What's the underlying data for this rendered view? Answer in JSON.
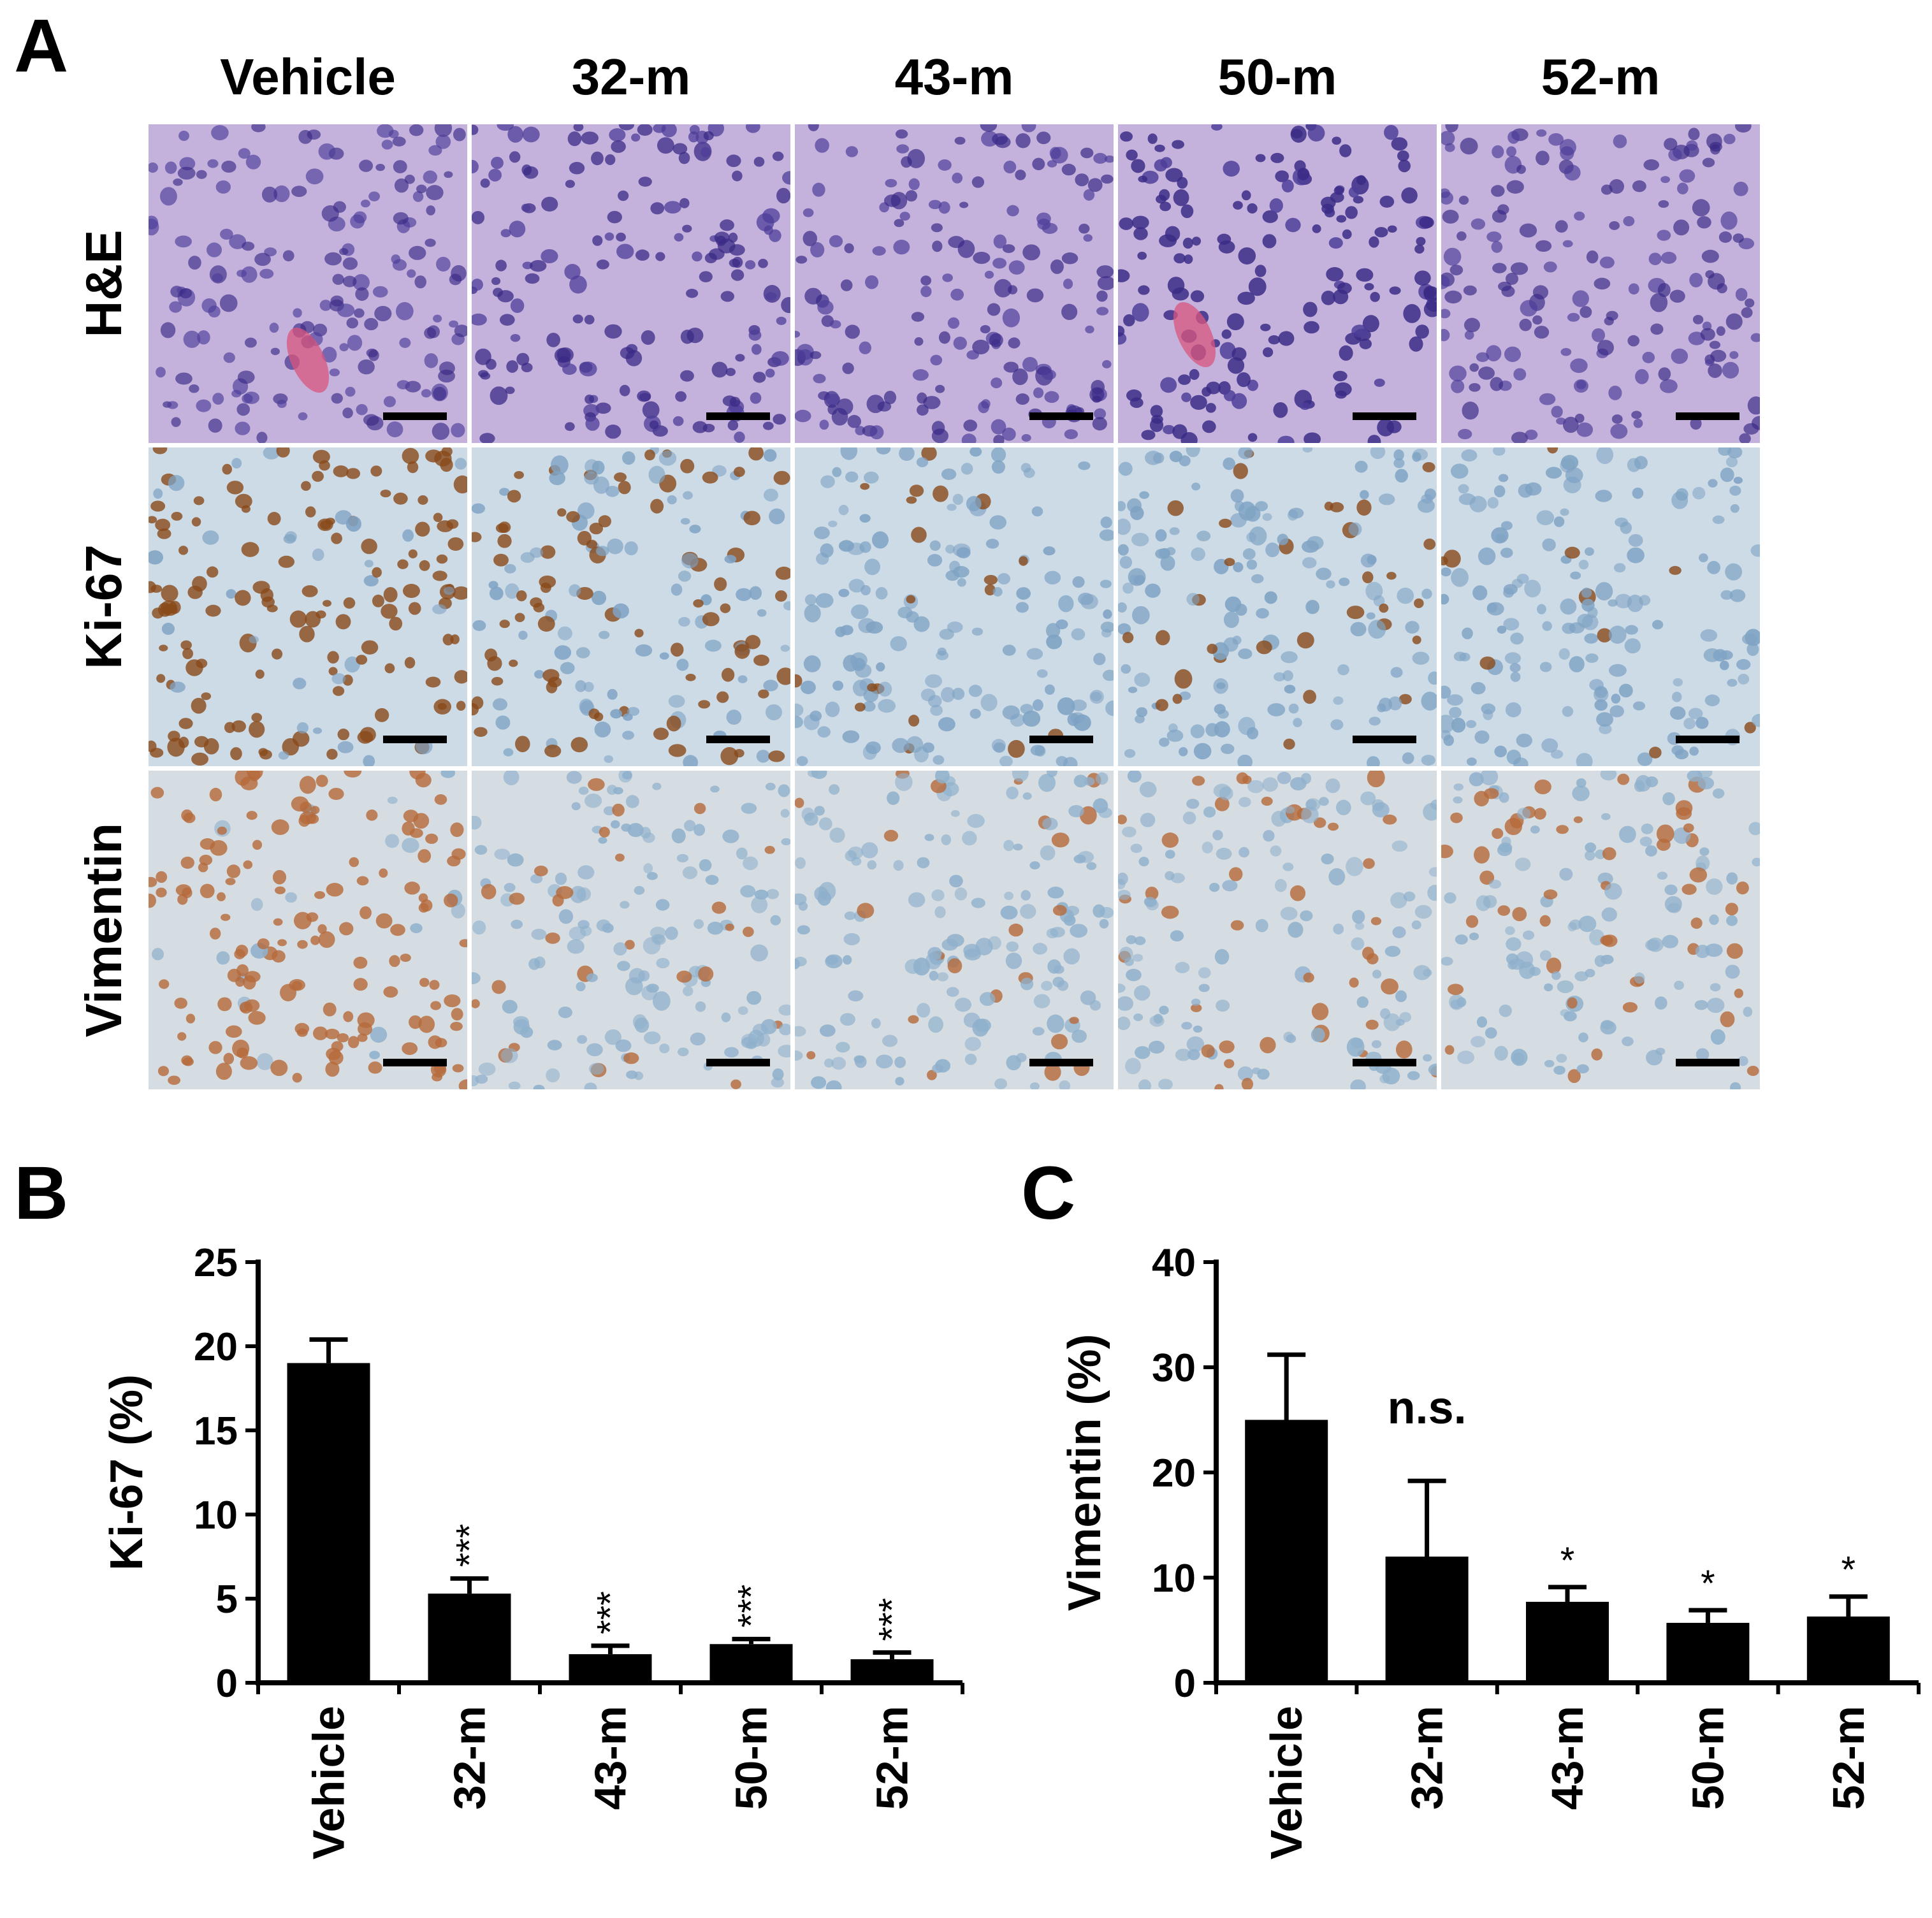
{
  "panel_a": {
    "letter": "A",
    "columns": [
      "Vehicle",
      "32-m",
      "43-m",
      "50-m",
      "52-m"
    ],
    "rows": [
      {
        "label": "H&E",
        "stain": "he",
        "colors": {
          "bg": "#c4b2dc",
          "cell": "#4d3d99",
          "accent": "#d9557d"
        },
        "intensity": [
          0.45,
          0.65,
          0.55,
          0.85,
          0.5
        ]
      },
      {
        "label": "Ki-67",
        "stain": "ki67",
        "colors": {
          "bg": "#cddbe6",
          "cell": "#7fa3c4",
          "accent": "#8a4a1a"
        },
        "intensity": [
          0.85,
          0.4,
          0.15,
          0.12,
          0.08
        ]
      },
      {
        "label": "Vimentin",
        "stain": "vim",
        "colors": {
          "bg": "#d6dde2",
          "cell": "#8fb0cc",
          "accent": "#b5693a"
        },
        "intensity": [
          0.9,
          0.12,
          0.12,
          0.28,
          0.32
        ]
      }
    ]
  },
  "chart_data": [
    {
      "panel": "B",
      "type": "bar",
      "categories": [
        "Vehicle",
        "32-m",
        "43-m",
        "50-m",
        "52-m"
      ],
      "values": [
        19.0,
        5.3,
        1.7,
        2.3,
        1.4
      ],
      "errors": [
        1.4,
        0.9,
        0.5,
        0.3,
        0.4
      ],
      "significance": [
        "",
        "***",
        "***",
        "***",
        "***"
      ],
      "ylabel": "Ki-67 (%)",
      "ylim": [
        0,
        25
      ],
      "yticks": [
        0,
        5,
        10,
        15,
        20,
        25
      ],
      "grid": false
    },
    {
      "panel": "C",
      "type": "bar",
      "categories": [
        "Vehicle",
        "32-m",
        "43-m",
        "50-m",
        "52-m"
      ],
      "values": [
        25.0,
        12.0,
        7.7,
        5.7,
        6.3
      ],
      "errors": [
        6.2,
        7.2,
        1.4,
        1.2,
        1.9
      ],
      "significance": [
        "",
        "n.s.",
        "*",
        "*",
        "*"
      ],
      "ylabel": "Vimentin (%)",
      "ylim": [
        0,
        40
      ],
      "yticks": [
        0,
        10,
        20,
        30,
        40
      ],
      "grid": false
    }
  ]
}
